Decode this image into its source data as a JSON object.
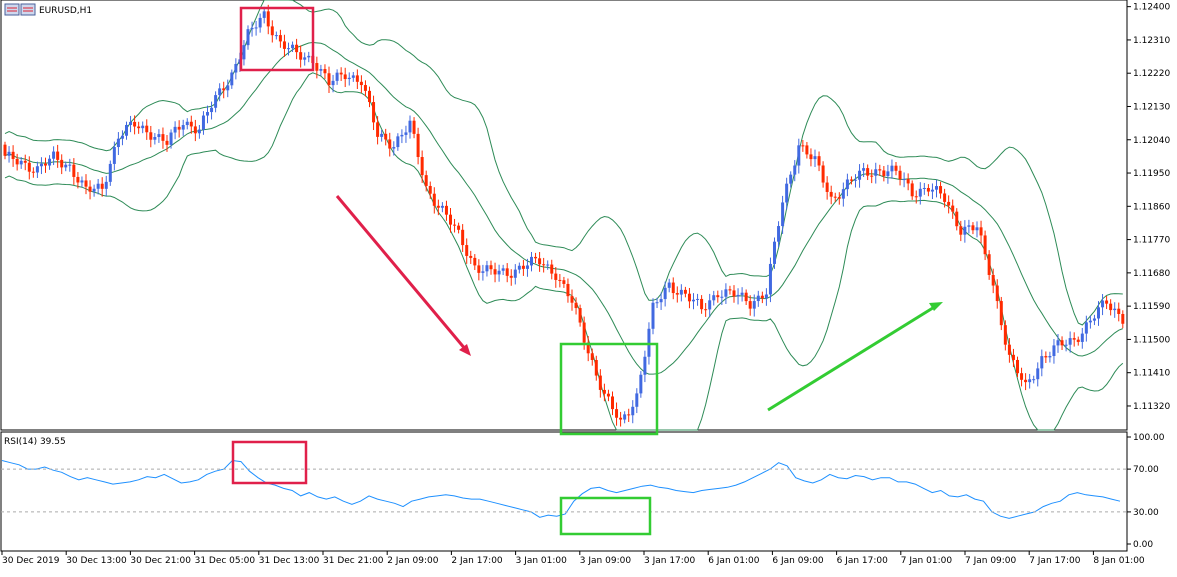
{
  "window": {
    "title": "EURUSD,H1"
  },
  "rsi_panel": {
    "title": "RSI(14) 39.55"
  },
  "colors": {
    "bull": "#4169e1",
    "bear": "#ff2a00",
    "band": "#2e8b57",
    "rsi_line": "#1e90ff",
    "highlight_red": "#e0204a",
    "highlight_green": "#33cc33",
    "arrow_down": "#e0204a",
    "arrow_up": "#33cc33"
  },
  "chart_data": [
    {
      "type": "candlestick",
      "symbol": "EURUSD",
      "timeframe": "H1",
      "y_ticks": [
        "1.12400",
        "1.12310",
        "1.12220",
        "1.12130",
        "1.12040",
        "1.11950",
        "1.11860",
        "1.11770",
        "1.11680",
        "1.11590",
        "1.11500",
        "1.11410",
        "1.11320"
      ],
      "ylim": [
        1.11255,
        1.12418
      ],
      "x_ticks": [
        "30 Dec 2019",
        "30 Dec 13:00",
        "30 Dec 21:00",
        "31 Dec 05:00",
        "31 Dec 13:00",
        "31 Dec 21:00",
        "2 Jan 09:00",
        "2 Jan 17:00",
        "3 Jan 01:00",
        "3 Jan 09:00",
        "3 Jan 17:00",
        "6 Jan 01:00",
        "6 Jan 09:00",
        "6 Jan 17:00",
        "7 Jan 01:00",
        "7 Jan 09:00",
        "7 Jan 17:00",
        "8 Jan 01:00"
      ],
      "close_path": [
        [
          0,
          1.1199
        ],
        [
          4,
          1.1198
        ],
        [
          8,
          1.1196
        ],
        [
          12,
          1.1199
        ],
        [
          16,
          1.1197
        ],
        [
          20,
          1.119
        ],
        [
          24,
          1.1191
        ],
        [
          28,
          1.1205
        ],
        [
          32,
          1.1208
        ],
        [
          36,
          1.1206
        ],
        [
          40,
          1.1203
        ],
        [
          44,
          1.1209
        ],
        [
          48,
          1.1207
        ],
        [
          52,
          1.1215
        ],
        [
          56,
          1.1222
        ],
        [
          60,
          1.1232
        ],
        [
          64,
          1.1238
        ],
        [
          68,
          1.123
        ],
        [
          72,
          1.1227
        ],
        [
          76,
          1.1226
        ],
        [
          80,
          1.1219
        ],
        [
          84,
          1.1222
        ],
        [
          88,
          1.122
        ],
        [
          92,
          1.1205
        ],
        [
          96,
          1.1203
        ],
        [
          100,
          1.1208
        ],
        [
          104,
          1.1191
        ],
        [
          108,
          1.1185
        ],
        [
          112,
          1.1178
        ],
        [
          116,
          1.117
        ],
        [
          120,
          1.1168
        ],
        [
          124,
          1.1168
        ],
        [
          128,
          1.117
        ],
        [
          132,
          1.1171
        ],
        [
          136,
          1.1168
        ],
        [
          140,
          1.116
        ],
        [
          144,
          1.1147
        ],
        [
          148,
          1.1135
        ],
        [
          152,
          1.1127
        ],
        [
          156,
          1.1135
        ],
        [
          160,
          1.1158
        ],
        [
          164,
          1.1165
        ],
        [
          168,
          1.1162
        ],
        [
          172,
          1.1158
        ],
        [
          176,
          1.1163
        ],
        [
          180,
          1.1162
        ],
        [
          184,
          1.116
        ],
        [
          188,
          1.1163
        ],
        [
          192,
          1.1187
        ],
        [
          196,
          1.1203
        ],
        [
          200,
          1.1198
        ],
        [
          204,
          1.1188
        ],
        [
          208,
          1.1192
        ],
        [
          212,
          1.1195
        ],
        [
          216,
          1.1196
        ],
        [
          220,
          1.1195
        ],
        [
          224,
          1.119
        ],
        [
          228,
          1.1191
        ],
        [
          232,
          1.1188
        ],
        [
          236,
          1.118
        ],
        [
          240,
          1.118
        ],
        [
          244,
          1.1165
        ],
        [
          248,
          1.1145
        ],
        [
          252,
          1.1137
        ],
        [
          256,
          1.1145
        ],
        [
          260,
          1.1148
        ],
        [
          264,
          1.115
        ],
        [
          268,
          1.1155
        ],
        [
          272,
          1.116
        ],
        [
          276,
          1.1156
        ]
      ]
    },
    {
      "type": "line",
      "name": "RSI(14)",
      "y_ticks": [
        "100.00",
        "70.00",
        "30.00",
        "0.00"
      ],
      "ylim": [
        0,
        100
      ],
      "levels": [
        70,
        30
      ],
      "last_value": 39.55,
      "values": [
        78,
        76,
        74,
        70,
        70,
        72,
        69,
        67,
        63,
        60,
        62,
        60,
        58,
        56,
        57,
        58,
        60,
        63,
        62,
        65,
        61,
        57,
        58,
        60,
        65,
        68,
        70,
        78,
        77,
        68,
        62,
        57,
        55,
        52,
        50,
        45,
        48,
        44,
        42,
        44,
        40,
        37,
        40,
        45,
        42,
        40,
        38,
        35,
        40,
        42,
        44,
        45,
        46,
        45,
        43,
        42,
        42,
        40,
        38,
        36,
        34,
        32,
        30,
        25,
        27,
        26,
        28,
        40,
        47,
        52,
        53,
        50,
        48,
        50,
        52,
        54,
        55,
        53,
        52,
        50,
        49,
        48,
        50,
        51,
        52,
        53,
        55,
        58,
        62,
        66,
        70,
        76,
        73,
        62,
        59,
        57,
        60,
        65,
        62,
        61,
        64,
        63,
        60,
        62,
        62,
        58,
        58,
        56,
        52,
        48,
        50,
        45,
        44,
        46,
        42,
        40,
        30,
        26,
        24,
        26,
        28,
        30,
        35,
        38,
        40,
        46,
        48,
        46,
        45,
        44,
        42,
        40
      ]
    }
  ]
}
